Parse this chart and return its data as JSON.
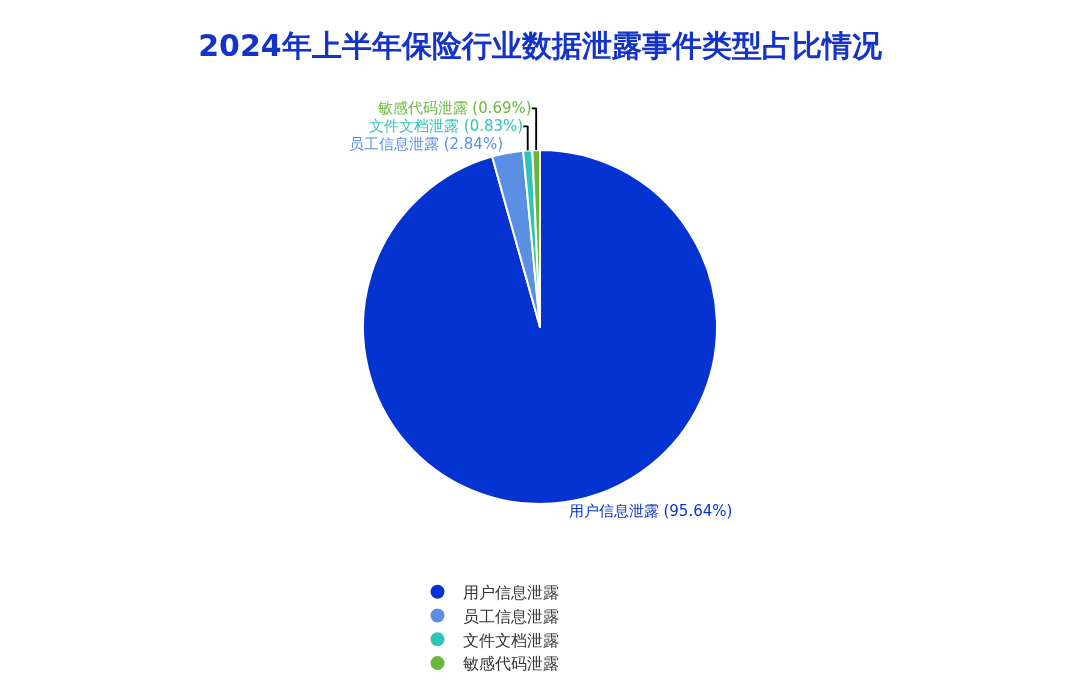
{
  "chart_data": {
    "type": "pie",
    "title": "2024年上半年保险行业数据泄露事件类型占比情况",
    "categories": [
      "用户信息泄露",
      "员工信息泄露",
      "文件文档泄露",
      "敏感代码泄露"
    ],
    "values": [
      95.64,
      2.84,
      0.83,
      0.69
    ],
    "value_labels": [
      "用户信息泄露 (95.64%)",
      "员工信息泄露 (2.84%)",
      "文件文档泄露 (0.83%)",
      "敏感代码泄露 (0.69%)"
    ],
    "colors": [
      "#0433d1",
      "#5b8fe3",
      "#2ec4b6",
      "#66b93c"
    ],
    "legend": "bottom",
    "marker": "circle"
  }
}
